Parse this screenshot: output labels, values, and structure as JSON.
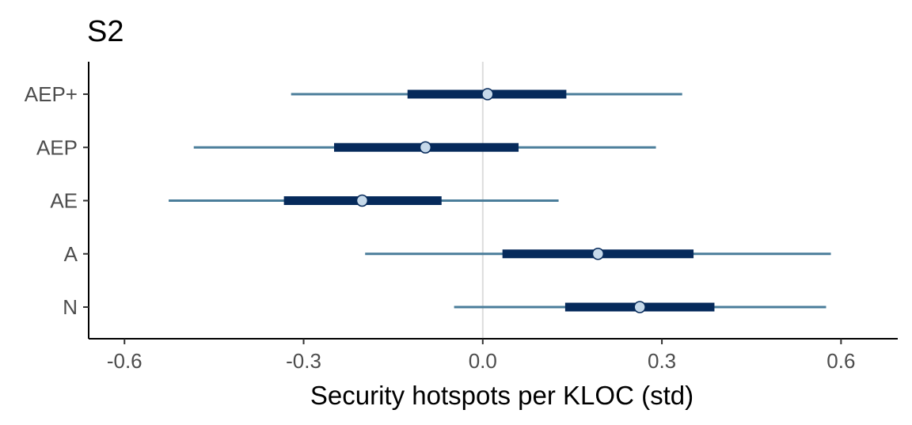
{
  "chart_data": {
    "type": "interval",
    "title": "S2",
    "xlabel": "Security hotspots per KLOC (std)",
    "ylabel": "",
    "xlim": [
      -0.66,
      0.695
    ],
    "x_ticks": [
      -0.6,
      -0.3,
      0.0,
      0.3,
      0.6
    ],
    "x_tick_labels": [
      "-0.6",
      "-0.3",
      "0.0",
      "0.3",
      "0.6"
    ],
    "reference_line_x": 0.0,
    "grid": false,
    "legend": "none",
    "categories": [
      "AEP+",
      "AEP",
      "AE",
      "A",
      "N"
    ],
    "series": [
      {
        "category": "AEP+",
        "point": 0.008,
        "inner": [
          -0.126,
          0.14
        ],
        "outer": [
          -0.321,
          0.334
        ]
      },
      {
        "category": "AEP",
        "point": -0.096,
        "inner": [
          -0.249,
          0.06
        ],
        "outer": [
          -0.484,
          0.29
        ]
      },
      {
        "category": "AE",
        "point": -0.202,
        "inner": [
          -0.333,
          -0.069
        ],
        "outer": [
          -0.526,
          0.127
        ]
      },
      {
        "category": "A",
        "point": 0.193,
        "inner": [
          0.033,
          0.353
        ],
        "outer": [
          -0.197,
          0.583
        ]
      },
      {
        "category": "N",
        "point": 0.263,
        "inner": [
          0.138,
          0.388
        ],
        "outer": [
          -0.048,
          0.575
        ]
      }
    ],
    "colors": {
      "outer_interval": "#4a7d9a",
      "inner_interval": "#062a5b",
      "point_fill": "#c6d9ea",
      "point_stroke": "#062a5b",
      "reference_line": "#dcdcdc",
      "axis": "#000000"
    }
  }
}
